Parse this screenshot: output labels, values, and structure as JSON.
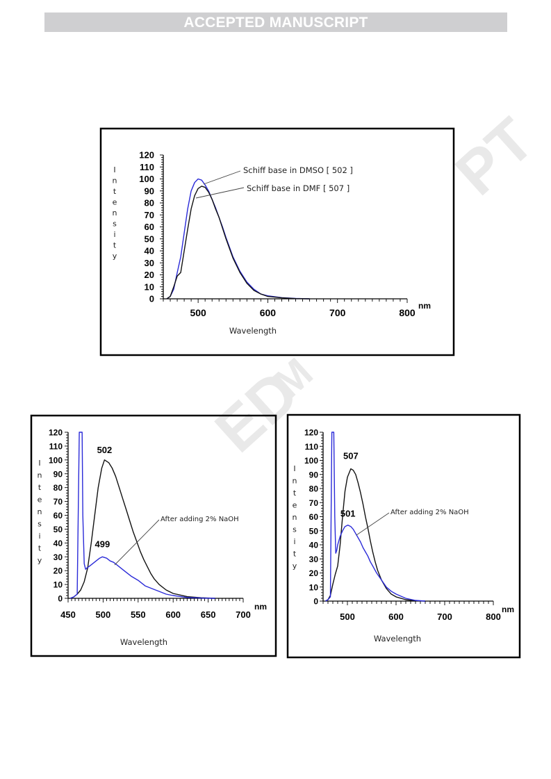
{
  "header": {
    "banner": "ACCEPTED MANUSCRIPT"
  },
  "watermark": {
    "parts": [
      "PT",
      "ED",
      "M"
    ]
  },
  "chart_data": [
    {
      "type": "line",
      "xlabel": "Wavelength",
      "x_unit": "nm",
      "ylabel": "Intensity",
      "xlim": [
        450,
        800
      ],
      "ylim": [
        0,
        120
      ],
      "x_ticks": [
        500,
        600,
        700,
        800
      ],
      "y_ticks": [
        0,
        10,
        20,
        30,
        40,
        50,
        60,
        70,
        80,
        90,
        100,
        110,
        120
      ],
      "annotations": [
        "Schiff base in DMSO [ 502 ]",
        "Schiff base in DMF [ 507 ]"
      ],
      "series": [
        {
          "name": "Schiff base in DMSO [ 502 ]",
          "color": "#2a2ad8",
          "x": [
            455,
            460,
            465,
            470,
            475,
            480,
            485,
            490,
            495,
            500,
            505,
            510,
            515,
            520,
            525,
            530,
            535,
            540,
            545,
            550,
            560,
            570,
            580,
            590,
            600,
            620,
            640,
            660
          ],
          "y": [
            0,
            2,
            8,
            22,
            35,
            55,
            75,
            90,
            97,
            100,
            99,
            95,
            90,
            83,
            76,
            68,
            60,
            51,
            43,
            35,
            23,
            14,
            8,
            4,
            2.5,
            1,
            0.3,
            0
          ]
        },
        {
          "name": "Schiff base in DMF [ 507 ]",
          "color": "#111111",
          "x": [
            455,
            460,
            465,
            470,
            475,
            480,
            485,
            490,
            495,
            500,
            505,
            510,
            515,
            520,
            525,
            530,
            535,
            540,
            545,
            550,
            560,
            570,
            580,
            590,
            600,
            620,
            640,
            660
          ],
          "y": [
            0,
            2,
            10,
            19,
            22,
            40,
            58,
            75,
            86,
            92,
            94,
            93,
            89,
            83,
            75,
            68,
            59,
            50,
            42,
            34,
            22,
            13,
            7,
            4,
            2,
            0.8,
            0.2,
            0
          ]
        }
      ]
    },
    {
      "type": "line",
      "xlabel": "Wavelength",
      "x_unit": "nm",
      "ylabel": "Intensity",
      "xlim": [
        450,
        700
      ],
      "ylim": [
        0,
        120
      ],
      "x_ticks": [
        450,
        500,
        550,
        600,
        650,
        700
      ],
      "y_ticks": [
        0,
        10,
        20,
        30,
        40,
        50,
        60,
        70,
        80,
        90,
        100,
        110,
        120
      ],
      "data_labels": [
        "502",
        "499"
      ],
      "annotations": [
        "After adding 2% NaOH"
      ],
      "series": [
        {
          "color": "#111111",
          "x": [
            453,
            458,
            463,
            468,
            473,
            478,
            483,
            488,
            493,
            498,
            502,
            508,
            513,
            518,
            523,
            528,
            533,
            538,
            543,
            548,
            553,
            558,
            563,
            568,
            573,
            580,
            590,
            600,
            620,
            640,
            660
          ],
          "y": [
            0,
            1,
            3,
            6,
            12,
            22,
            40,
            60,
            80,
            94,
            100,
            98,
            94,
            88,
            80,
            72,
            64,
            56,
            48,
            41,
            34,
            28,
            23,
            18,
            14,
            10,
            6,
            3.5,
            1.2,
            0.4,
            0
          ]
        },
        {
          "color": "#2a2ad8",
          "x": [
            453,
            458,
            463,
            466,
            468,
            470,
            471,
            473,
            475,
            477,
            480,
            485,
            490,
            495,
            499,
            505,
            510,
            515,
            520,
            530,
            540,
            550,
            560,
            570,
            580,
            590,
            600,
            620,
            640,
            660
          ],
          "y": [
            0,
            1,
            3,
            120,
            120,
            120,
            60,
            25,
            21,
            22,
            23,
            25,
            27,
            29,
            30,
            29,
            27,
            26,
            24,
            20,
            16,
            13,
            9,
            7,
            5,
            3,
            2,
            0.6,
            0.2,
            0
          ]
        }
      ]
    },
    {
      "type": "line",
      "xlabel": "Wavelength",
      "x_unit": "nm",
      "ylabel": "Intensity",
      "xlim": [
        450,
        800
      ],
      "ylim": [
        0,
        120
      ],
      "x_ticks": [
        500,
        600,
        700,
        800
      ],
      "y_ticks": [
        0,
        10,
        20,
        30,
        40,
        50,
        60,
        70,
        80,
        90,
        100,
        110,
        120
      ],
      "data_labels": [
        "507",
        "501"
      ],
      "annotations": [
        "After adding 2% NaOH"
      ],
      "series": [
        {
          "color": "#111111",
          "x": [
            455,
            460,
            465,
            470,
            475,
            480,
            485,
            490,
            495,
            500,
            507,
            512,
            517,
            522,
            527,
            532,
            537,
            542,
            547,
            552,
            557,
            562,
            570,
            580,
            590,
            600,
            620,
            640,
            660
          ],
          "y": [
            0,
            1,
            4,
            12,
            19,
            25,
            40,
            60,
            78,
            88,
            94,
            93,
            90,
            84,
            77,
            69,
            60,
            52,
            43,
            35,
            28,
            22,
            15,
            9,
            5,
            3,
            1,
            0.3,
            0
          ]
        },
        {
          "color": "#2a2ad8",
          "x": [
            455,
            460,
            465,
            468,
            470,
            472,
            474,
            476,
            478,
            480,
            485,
            490,
            495,
            501,
            507,
            512,
            517,
            522,
            527,
            532,
            537,
            542,
            547,
            552,
            560,
            570,
            580,
            590,
            600,
            620,
            640,
            660
          ],
          "y": [
            0,
            1,
            3,
            120,
            120,
            120,
            60,
            34,
            36,
            40,
            46,
            50,
            53,
            54,
            53,
            51,
            48,
            45,
            42,
            38,
            35,
            32,
            28,
            25,
            20,
            15,
            10,
            7,
            5,
            2,
            0.5,
            0
          ]
        }
      ]
    }
  ]
}
